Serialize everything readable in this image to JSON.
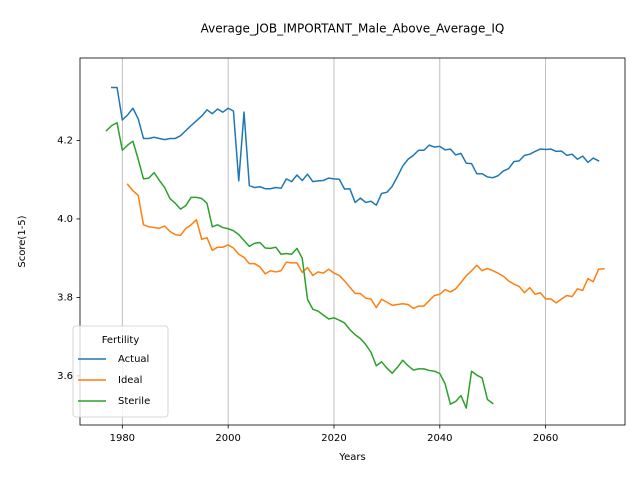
{
  "chart_data": {
    "type": "line",
    "title": "Average_JOB_IMPORTANT_Male_Above_Average_IQ",
    "xlabel": "Years",
    "ylabel": "Score(1-5)",
    "xlim": [
      1972,
      2075
    ],
    "ylim": [
      3.475,
      4.41
    ],
    "xticks": [
      1980,
      2000,
      2020,
      2040,
      2060
    ],
    "yticks": [
      3.6,
      3.8,
      4.0,
      4.2
    ],
    "ytick_labels": [
      "3.6",
      "3.8",
      "4.0",
      "4.2"
    ],
    "grid": "x-only",
    "legend": {
      "title": "Fertility",
      "placement": "lower-left"
    },
    "series": [
      {
        "name": "Actual",
        "color": "#1f77b4",
        "x_start": 1978,
        "values": [
          4.335,
          4.335,
          4.252,
          4.265,
          4.282,
          4.255,
          4.205,
          4.205,
          4.208,
          4.205,
          4.202,
          4.205,
          4.205,
          4.212,
          4.225,
          4.238,
          4.25,
          4.262,
          4.278,
          4.268,
          4.28,
          4.272,
          4.282,
          4.275,
          4.097,
          4.272,
          4.085,
          4.08,
          4.082,
          4.077,
          4.077,
          4.08,
          4.078,
          4.102,
          4.095,
          4.112,
          4.098,
          4.114,
          4.095,
          4.097,
          4.098,
          4.104,
          4.102,
          4.101,
          4.076,
          4.077,
          4.042,
          4.053,
          4.042,
          4.045,
          4.035,
          4.065,
          4.068,
          4.083,
          4.108,
          4.135,
          4.152,
          4.162,
          4.175,
          4.175,
          4.188,
          4.183,
          4.185,
          4.176,
          4.178,
          4.163,
          4.167,
          4.142,
          4.141,
          4.115,
          4.115,
          4.107,
          4.105,
          4.11,
          4.122,
          4.128,
          4.146,
          4.148,
          4.162,
          4.165,
          4.172,
          4.178,
          4.177,
          4.178,
          4.172,
          4.173,
          4.162,
          4.165,
          4.152,
          4.16,
          4.144,
          4.155,
          4.148
        ]
      },
      {
        "name": "Ideal",
        "color": "#ff7f0e",
        "x_start": 1981,
        "values": [
          4.088,
          4.072,
          4.06,
          3.985,
          3.98,
          3.978,
          3.976,
          3.982,
          3.968,
          3.96,
          3.958,
          3.976,
          3.985,
          3.998,
          3.948,
          3.952,
          3.92,
          3.928,
          3.928,
          3.934,
          3.926,
          3.91,
          3.902,
          3.886,
          3.886,
          3.878,
          3.86,
          3.868,
          3.865,
          3.868,
          3.89,
          3.888,
          3.888,
          3.864,
          3.876,
          3.856,
          3.865,
          3.862,
          3.872,
          3.862,
          3.856,
          3.842,
          3.826,
          3.81,
          3.81,
          3.798,
          3.796,
          3.774,
          3.795,
          3.788,
          3.78,
          3.782,
          3.784,
          3.782,
          3.772,
          3.778,
          3.778,
          3.792,
          3.805,
          3.808,
          3.82,
          3.814,
          3.822,
          3.838,
          3.855,
          3.868,
          3.882,
          3.868,
          3.874,
          3.868,
          3.862,
          3.854,
          3.842,
          3.834,
          3.828,
          3.812,
          3.825,
          3.808,
          3.812,
          3.796,
          3.796,
          3.786,
          3.796,
          3.805,
          3.802,
          3.822,
          3.818,
          3.848,
          3.84,
          3.872,
          3.873
        ]
      },
      {
        "name": "Sterile",
        "color": "#2ca02c",
        "x_start": 1977,
        "values": [
          4.225,
          4.238,
          4.245,
          4.175,
          4.188,
          4.198,
          4.152,
          4.102,
          4.104,
          4.118,
          4.098,
          4.08,
          4.052,
          4.04,
          4.025,
          4.034,
          4.055,
          4.055,
          4.052,
          4.04,
          3.98,
          3.985,
          3.978,
          3.975,
          3.97,
          3.96,
          3.945,
          3.93,
          3.938,
          3.94,
          3.926,
          3.925,
          3.928,
          3.91,
          3.912,
          3.91,
          3.925,
          3.9,
          3.795,
          3.77,
          3.765,
          3.755,
          3.745,
          3.748,
          3.742,
          3.735,
          3.718,
          3.705,
          3.695,
          3.68,
          3.66,
          3.626,
          3.636,
          3.62,
          3.607,
          3.622,
          3.64,
          3.626,
          3.615,
          3.618,
          3.618,
          3.614,
          3.612,
          3.606,
          3.58,
          3.528,
          3.535,
          3.55,
          3.518,
          3.612,
          3.602,
          3.595,
          3.54,
          3.53
        ]
      }
    ]
  }
}
